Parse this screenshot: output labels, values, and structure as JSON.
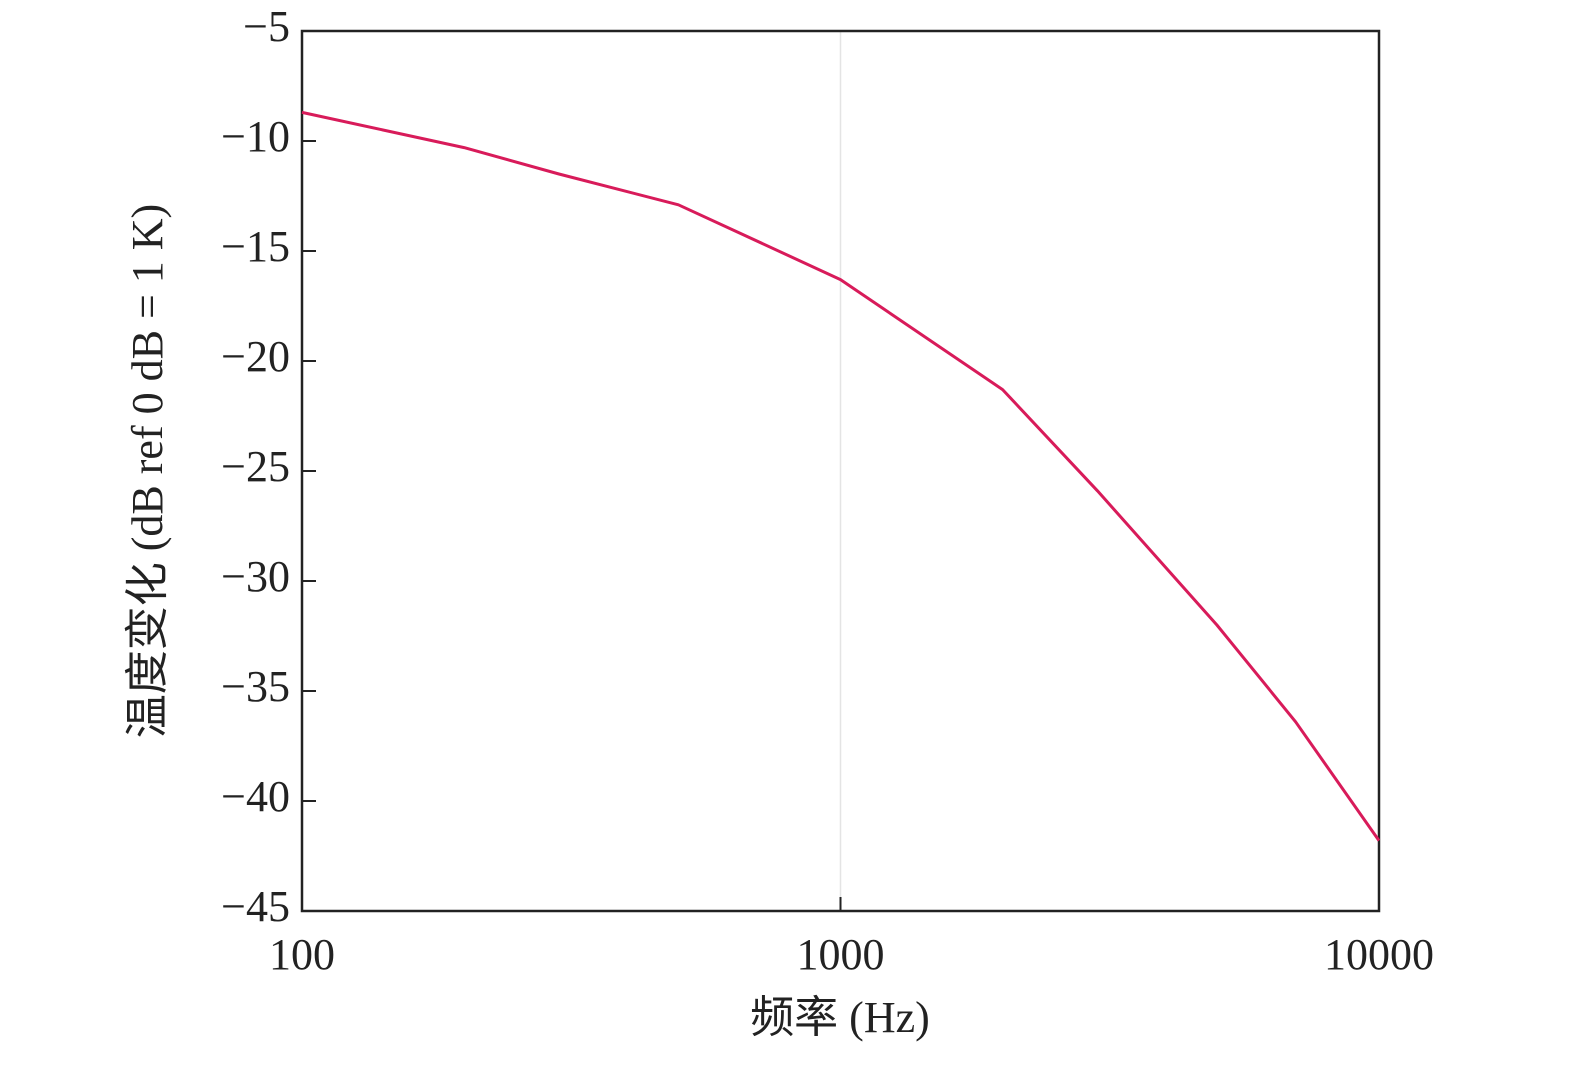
{
  "chart_data": {
    "type": "line",
    "x_label": "频率 (Hz)",
    "y_label": "温度变化 (dB ref 0 dB = 1 K)",
    "x": [
      100,
      200,
      300,
      500,
      1000,
      2000,
      3000,
      5000,
      7000,
      10000
    ],
    "series": [
      {
        "color": "#d81b5a",
        "values": [
          -8.7,
          -10.3,
          -11.5,
          -12.9,
          -16.3,
          -21.3,
          -25.9,
          -32.0,
          -36.4,
          -41.8
        ]
      }
    ],
    "xscale": "log",
    "xlim": [
      100,
      10000
    ],
    "xticks": [
      100,
      1000,
      10000
    ],
    "ylim": [
      -45,
      -5
    ],
    "yticks": [
      {
        "value": -45,
        "label": "−45"
      },
      {
        "value": -40,
        "label": "−40"
      },
      {
        "value": -35,
        "label": "−35"
      },
      {
        "value": -30,
        "label": "−30"
      },
      {
        "value": -25,
        "label": "−25"
      },
      {
        "value": -20,
        "label": "−20"
      },
      {
        "value": -15,
        "label": "−15"
      },
      {
        "value": -10,
        "label": "−10"
      },
      {
        "value": -5,
        "label": "−5"
      }
    ],
    "xgrid": true
  }
}
